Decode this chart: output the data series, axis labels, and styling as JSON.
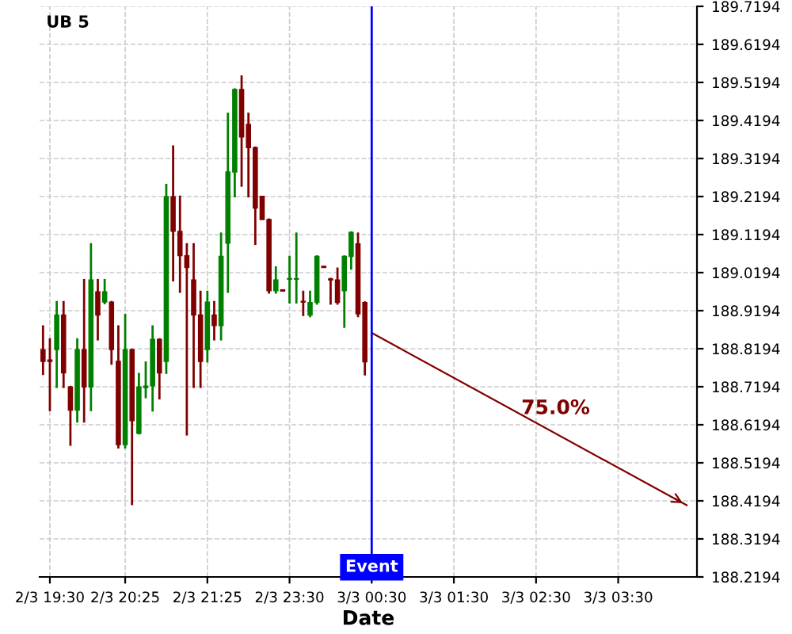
{
  "chart_data": {
    "type": "candlestick",
    "title": "UB 5",
    "xlabel": "Date",
    "categories": [
      null,
      "2/3 19:30",
      null,
      null,
      null,
      null,
      null,
      null,
      null,
      null,
      null,
      null,
      "2/3 20:25",
      null,
      null,
      null,
      null,
      null,
      null,
      null,
      null,
      null,
      null,
      null,
      "2/3 21:25",
      null,
      null,
      null,
      null,
      null,
      null,
      null,
      null,
      null,
      null,
      null,
      "2/3 23:30",
      null,
      null,
      null,
      null,
      null,
      null,
      null,
      null,
      null,
      null,
      null,
      "3/3 00:30",
      null,
      null,
      null,
      null,
      null,
      null,
      null,
      null,
      null,
      null,
      null,
      "3/3 01:30",
      null,
      null,
      null,
      null,
      null,
      null,
      null,
      null,
      null,
      null,
      null,
      "3/3 02:30",
      null,
      null,
      null,
      null,
      null,
      null,
      null,
      null,
      null,
      null,
      null,
      "3/3 03:30",
      null,
      null,
      null,
      null,
      null,
      null,
      null,
      null,
      null,
      null,
      null
    ],
    "ohlc": [
      [
        188.817,
        188.878,
        188.753,
        188.786
      ],
      [
        188.79,
        188.844,
        188.658,
        188.786
      ],
      [
        188.817,
        188.942,
        188.719,
        188.908
      ],
      [
        188.908,
        188.942,
        188.719,
        188.756
      ],
      [
        188.719,
        188.719,
        188.567,
        188.658
      ],
      [
        188.658,
        188.844,
        188.628,
        188.817
      ],
      [
        188.817,
        189.0,
        188.628,
        188.719
      ],
      [
        188.719,
        189.094,
        188.658,
        189.0
      ],
      [
        188.969,
        189.0,
        188.844,
        188.908
      ],
      [
        188.942,
        189.0,
        188.939,
        188.969
      ],
      [
        188.942,
        188.942,
        188.78,
        188.817
      ],
      [
        188.786,
        188.878,
        188.56,
        188.567
      ],
      [
        188.567,
        188.908,
        188.56,
        188.817
      ],
      [
        188.817,
        188.817,
        188.411,
        188.63
      ],
      [
        188.597,
        188.753,
        188.597,
        188.719
      ],
      [
        188.717,
        188.783,
        188.692,
        188.721
      ],
      [
        188.722,
        188.878,
        188.657,
        188.844
      ],
      [
        188.844,
        188.844,
        188.689,
        188.756
      ],
      [
        188.786,
        189.25,
        188.756,
        189.219
      ],
      [
        189.219,
        189.351,
        188.999,
        189.128
      ],
      [
        189.128,
        189.219,
        188.969,
        189.064
      ],
      [
        189.064,
        189.094,
        188.594,
        189.033
      ],
      [
        189.0,
        189.094,
        188.719,
        188.908
      ],
      [
        188.908,
        188.969,
        188.719,
        188.786
      ],
      [
        188.817,
        188.969,
        188.786,
        188.942
      ],
      [
        188.908,
        188.942,
        188.844,
        188.88
      ],
      [
        188.88,
        189.122,
        188.844,
        189.062
      ],
      [
        189.097,
        189.437,
        188.969,
        189.284
      ],
      [
        189.284,
        189.501,
        189.22,
        189.501
      ],
      [
        189.501,
        189.535,
        189.248,
        189.376
      ],
      [
        189.409,
        189.437,
        189.22,
        189.348
      ],
      [
        189.348,
        189.348,
        189.095,
        189.189
      ],
      [
        189.22,
        189.22,
        189.159,
        189.159
      ],
      [
        189.159,
        189.159,
        188.967,
        188.972
      ],
      [
        188.972,
        189.033,
        188.967,
        189.0
      ],
      [
        188.974,
        188.974,
        188.971,
        188.971
      ],
      [
        189.002,
        189.061,
        188.941,
        189.004
      ],
      [
        189.002,
        189.122,
        188.941,
        189.003
      ],
      [
        188.944,
        188.969,
        188.908,
        188.942
      ],
      [
        188.908,
        188.969,
        188.905,
        188.941
      ],
      [
        188.941,
        189.062,
        188.938,
        189.062
      ],
      [
        189.036,
        189.036,
        189.033,
        189.033
      ],
      [
        189.003,
        189.003,
        188.938,
        189.0
      ],
      [
        189.0,
        189.03,
        188.938,
        188.941
      ],
      [
        188.972,
        189.062,
        188.877,
        189.062
      ],
      [
        189.062,
        189.125,
        189.03,
        189.125
      ],
      [
        189.095,
        189.122,
        188.905,
        188.911
      ],
      [
        188.941,
        188.941,
        188.752,
        188.785
      ],
      null,
      null,
      null,
      null,
      null,
      null,
      null,
      null,
      null,
      null,
      null,
      null,
      null,
      null,
      null,
      null,
      null,
      null,
      null,
      null,
      null,
      null,
      null,
      null,
      null,
      null,
      null,
      null,
      null,
      null,
      null,
      null,
      null,
      null,
      null,
      null,
      null,
      null,
      null,
      null,
      null,
      null,
      null,
      null,
      null,
      null,
      null,
      null
    ],
    "colors": [
      "#800000",
      "#800000",
      "#008000",
      "#800000",
      "#800000",
      "#008000",
      "#800000",
      "#008000",
      "#800000",
      "#008000",
      "#800000",
      "#800000",
      "#008000",
      "#800000",
      "#008000",
      "#008000",
      "#008000",
      "#800000",
      "#008000",
      "#800000",
      "#800000",
      "#800000",
      "#800000",
      "#800000",
      "#008000",
      "#800000",
      "#008000",
      "#008000",
      "#008000",
      "#800000",
      "#800000",
      "#800000",
      "#800000",
      "#800000",
      "#008000",
      "#800000",
      "#008000",
      "#008000",
      "#800000",
      "#008000",
      "#008000",
      "#800000",
      "#800000",
      "#800000",
      "#008000",
      "#008000",
      "#800000",
      "#800000",
      null,
      null,
      null,
      null,
      null,
      null,
      null,
      null,
      null,
      null,
      null,
      null,
      null,
      null,
      null,
      null,
      null,
      null,
      null,
      null,
      null,
      null,
      null,
      null,
      null,
      null,
      null,
      null,
      null,
      null,
      null,
      null,
      null,
      null,
      null,
      null,
      null,
      null,
      null,
      null,
      null,
      null,
      null,
      null,
      null,
      null,
      null,
      null
    ],
    "series": [
      {
        "type": "line",
        "values": [
          null,
          null,
          null,
          null,
          null,
          null,
          null,
          null,
          null,
          null,
          null,
          null,
          null,
          null,
          null,
          null,
          null,
          null,
          null,
          null,
          null,
          null,
          null,
          null,
          null,
          null,
          null,
          null,
          null,
          null,
          null,
          null,
          null,
          null,
          null,
          null,
          null,
          null,
          null,
          null,
          null,
          null,
          null,
          null,
          null,
          null,
          null,
          null,
          188.861,
          null,
          null,
          null,
          null,
          null,
          null,
          null,
          null,
          null,
          null,
          null,
          null,
          null,
          null,
          null,
          null,
          null,
          null,
          null,
          null,
          null,
          null,
          null,
          null,
          null,
          null,
          null,
          null,
          null,
          null,
          null,
          null,
          null,
          null,
          null,
          null,
          null,
          null,
          null,
          null,
          null,
          null,
          null,
          null,
          null,
          188.408,
          null
        ],
        "color": "#800000"
      }
    ],
    "annotations": [
      "75.0%"
    ],
    "ref_lines": [
      {
        "axis": "x",
        "value": "3/3 00:30",
        "label": "Event",
        "color": "#0000ff"
      }
    ],
    "ylim": [
      188.2194,
      189.7194
    ],
    "yticks": [
      188.2194,
      188.3194,
      188.4194,
      188.5194,
      188.6194,
      188.7194,
      188.8194,
      188.9194,
      189.0194,
      189.1194,
      189.2194,
      189.3194,
      189.4194,
      189.5194,
      189.6194,
      189.7194
    ],
    "grid": true
  }
}
